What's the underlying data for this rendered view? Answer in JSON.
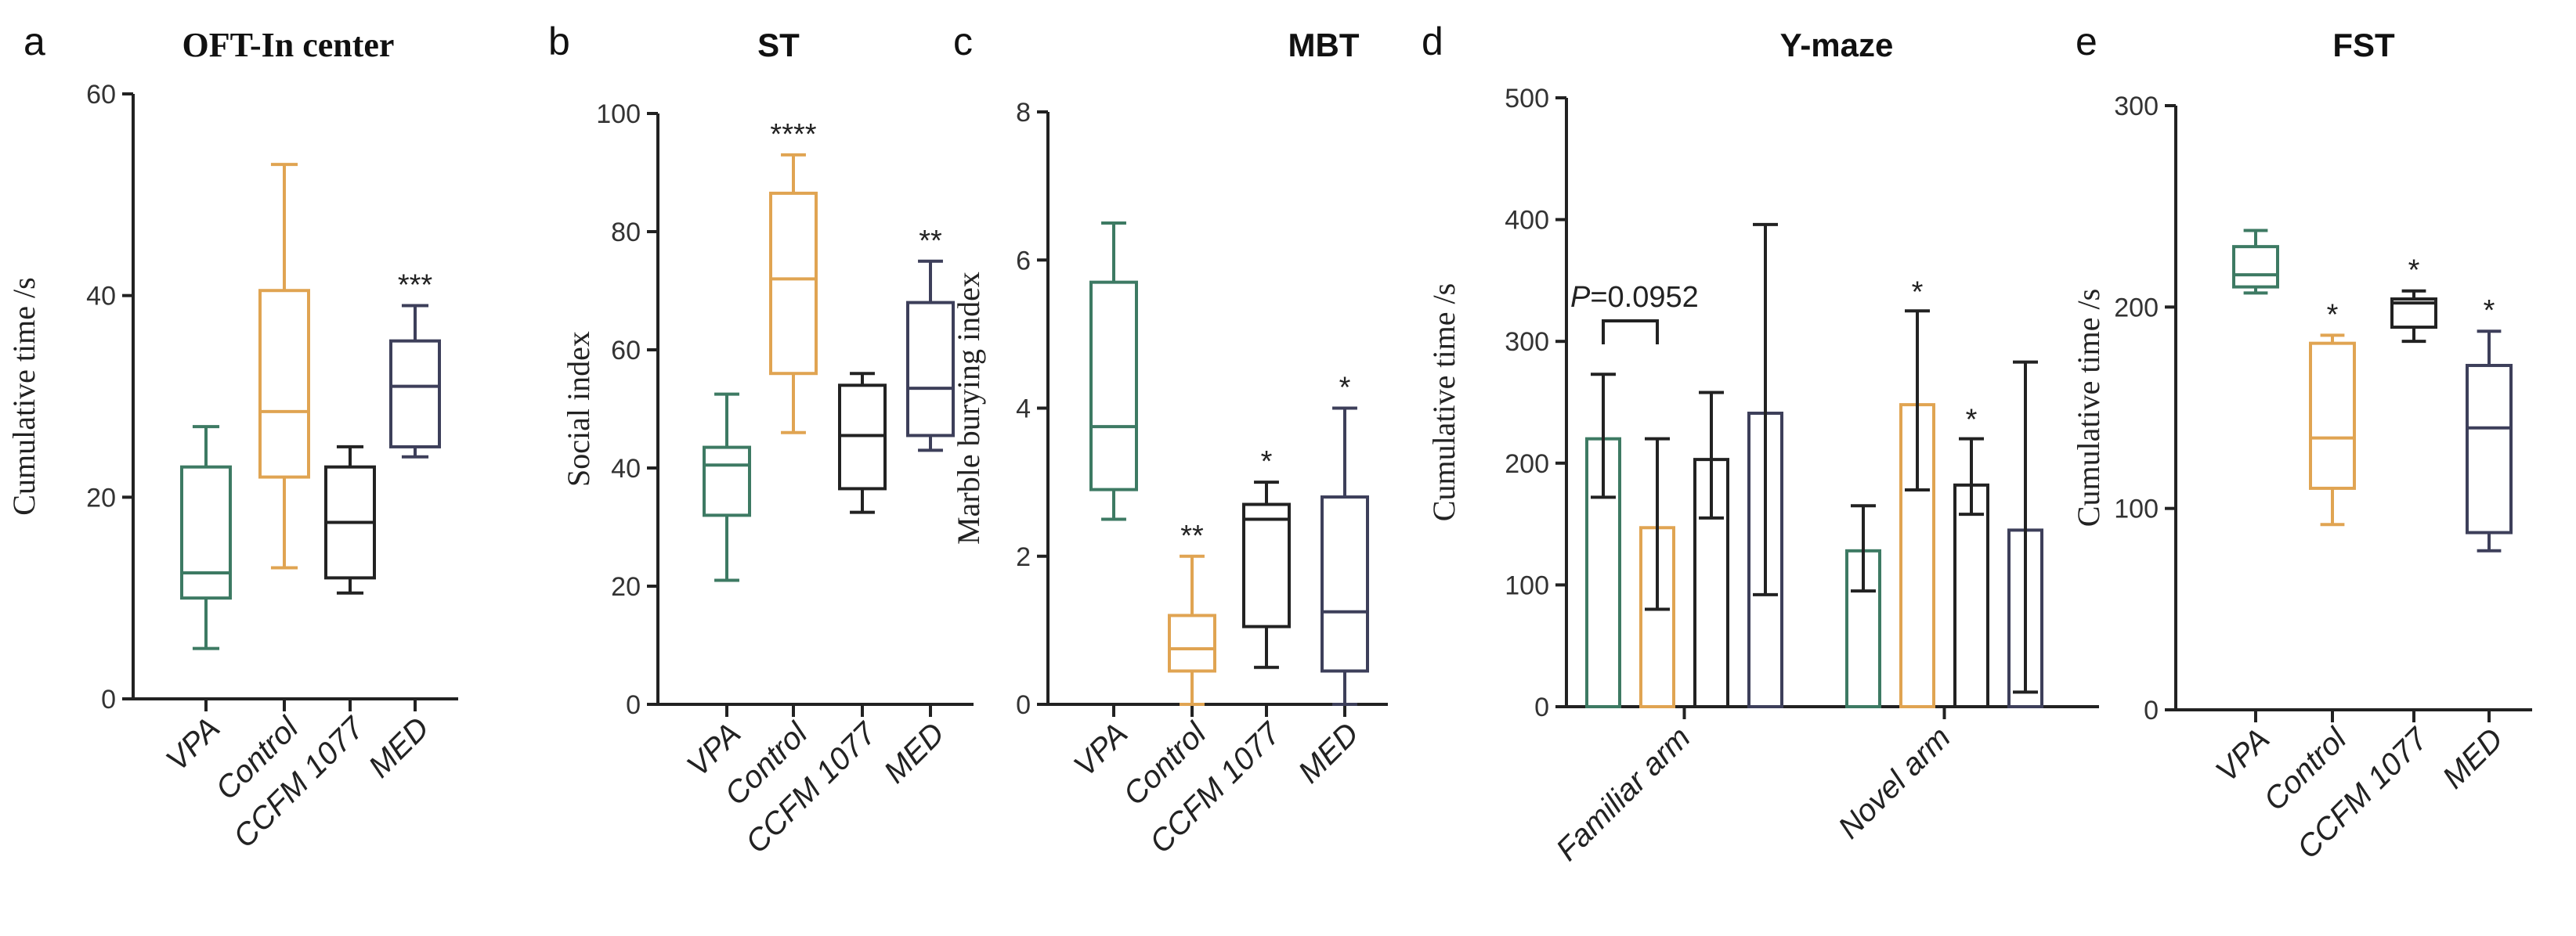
{
  "colors": {
    "VPA": "#3d7a63",
    "Control": "#e0a452",
    "CCFM 1077": "#222222",
    "MED": "#3d3f5a"
  },
  "chart_data": [
    {
      "panel": "a",
      "type": "box",
      "title": "OFT-In center",
      "title_font": "serif",
      "ylabel": "Cumulative time /s",
      "ylim": [
        0,
        60
      ],
      "yticks": [
        0,
        20,
        40,
        60
      ],
      "categories": [
        "VPA",
        "Control",
        "CCFM 1077",
        "MED"
      ],
      "boxes": [
        {
          "min": 5,
          "q1": 10,
          "median": 12.5,
          "q3": 23,
          "max": 27,
          "sig": ""
        },
        {
          "min": 13,
          "q1": 22,
          "median": 28.5,
          "q3": 40.5,
          "max": 53,
          "sig": ""
        },
        {
          "min": 10.5,
          "q1": 12,
          "median": 17.5,
          "q3": 23,
          "max": 25,
          "sig": ""
        },
        {
          "min": 24,
          "q1": 25,
          "median": 31,
          "q3": 35.5,
          "max": 39,
          "sig": "***"
        }
      ]
    },
    {
      "panel": "b",
      "type": "box",
      "title": "ST",
      "title_font": "sans",
      "ylabel": "Social index",
      "ylim": [
        0,
        100
      ],
      "yticks": [
        0,
        20,
        40,
        60,
        80,
        100
      ],
      "categories": [
        "VPA",
        "Control",
        "CCFM 1077",
        "MED"
      ],
      "boxes": [
        {
          "min": 21,
          "q1": 32,
          "median": 40.5,
          "q3": 43.5,
          "max": 52.5,
          "sig": ""
        },
        {
          "min": 46,
          "q1": 56,
          "median": 72,
          "q3": 86.5,
          "max": 93,
          "sig": "****"
        },
        {
          "min": 32.5,
          "q1": 36.5,
          "median": 45.5,
          "q3": 54,
          "max": 56,
          "sig": ""
        },
        {
          "min": 43,
          "q1": 45.5,
          "median": 53.5,
          "q3": 68,
          "max": 75,
          "sig": "**"
        }
      ]
    },
    {
      "panel": "c",
      "type": "box",
      "title": "MBT",
      "title_font": "sans",
      "ylabel": "Marble burying index",
      "ylim": [
        0,
        8
      ],
      "yticks": [
        0,
        2,
        4,
        6,
        8
      ],
      "categories": [
        "VPA",
        "Control",
        "CCFM 1077",
        "MED"
      ],
      "boxes": [
        {
          "min": 2.5,
          "q1": 2.9,
          "median": 3.75,
          "q3": 5.7,
          "max": 6.5,
          "sig": ""
        },
        {
          "min": 0,
          "q1": 0.45,
          "median": 0.75,
          "q3": 1.2,
          "max": 2.0,
          "sig": "**"
        },
        {
          "min": 0.5,
          "q1": 1.05,
          "median": 2.5,
          "q3": 2.7,
          "max": 3.0,
          "sig": "*"
        },
        {
          "min": 0,
          "q1": 0.45,
          "median": 1.25,
          "q3": 2.8,
          "max": 4.0,
          "sig": "*"
        }
      ]
    },
    {
      "panel": "d",
      "type": "bar",
      "title": "Y-maze",
      "title_font": "sans",
      "ylabel": "Cumulative time /s",
      "ylim": [
        0,
        500
      ],
      "yticks": [
        0,
        100,
        200,
        300,
        400,
        500
      ],
      "categories": [
        "Familiar arm",
        "Novel arm"
      ],
      "annotation": "P=0.0952",
      "series": [
        {
          "name": "VPA",
          "values": [
            220,
            128
          ],
          "err_low": [
            172,
            95
          ],
          "err_high": [
            273,
            165
          ],
          "sig": [
            "",
            ""
          ]
        },
        {
          "name": "Control",
          "values": [
            147,
            248
          ],
          "err_low": [
            80,
            178
          ],
          "err_high": [
            220,
            325
          ],
          "sig": [
            "",
            "*"
          ]
        },
        {
          "name": "CCFM 1077",
          "values": [
            203,
            182
          ],
          "err_low": [
            155,
            158
          ],
          "err_high": [
            258,
            220
          ],
          "sig": [
            "",
            "*"
          ]
        },
        {
          "name": "MED",
          "values": [
            241,
            145
          ],
          "err_low": [
            92,
            12
          ],
          "err_high": [
            396,
            283
          ],
          "sig": [
            "",
            ""
          ]
        }
      ]
    },
    {
      "panel": "e",
      "type": "box",
      "title": "FST",
      "title_font": "sans",
      "ylabel": "Cumulative time /s",
      "ylim": [
        0,
        300
      ],
      "yticks": [
        0,
        100,
        200,
        300
      ],
      "categories": [
        "VPA",
        "Control",
        "CCFM 1077",
        "MED"
      ],
      "boxes": [
        {
          "min": 207,
          "q1": 210,
          "median": 216,
          "q3": 230,
          "max": 238,
          "sig": ""
        },
        {
          "min": 92,
          "q1": 110,
          "median": 135,
          "q3": 182,
          "max": 186,
          "sig": "*"
        },
        {
          "min": 183,
          "q1": 190,
          "median": 202,
          "q3": 204,
          "max": 208,
          "sig": "*"
        },
        {
          "min": 79,
          "q1": 88,
          "median": 140,
          "q3": 171,
          "max": 188,
          "sig": "*"
        }
      ]
    }
  ]
}
